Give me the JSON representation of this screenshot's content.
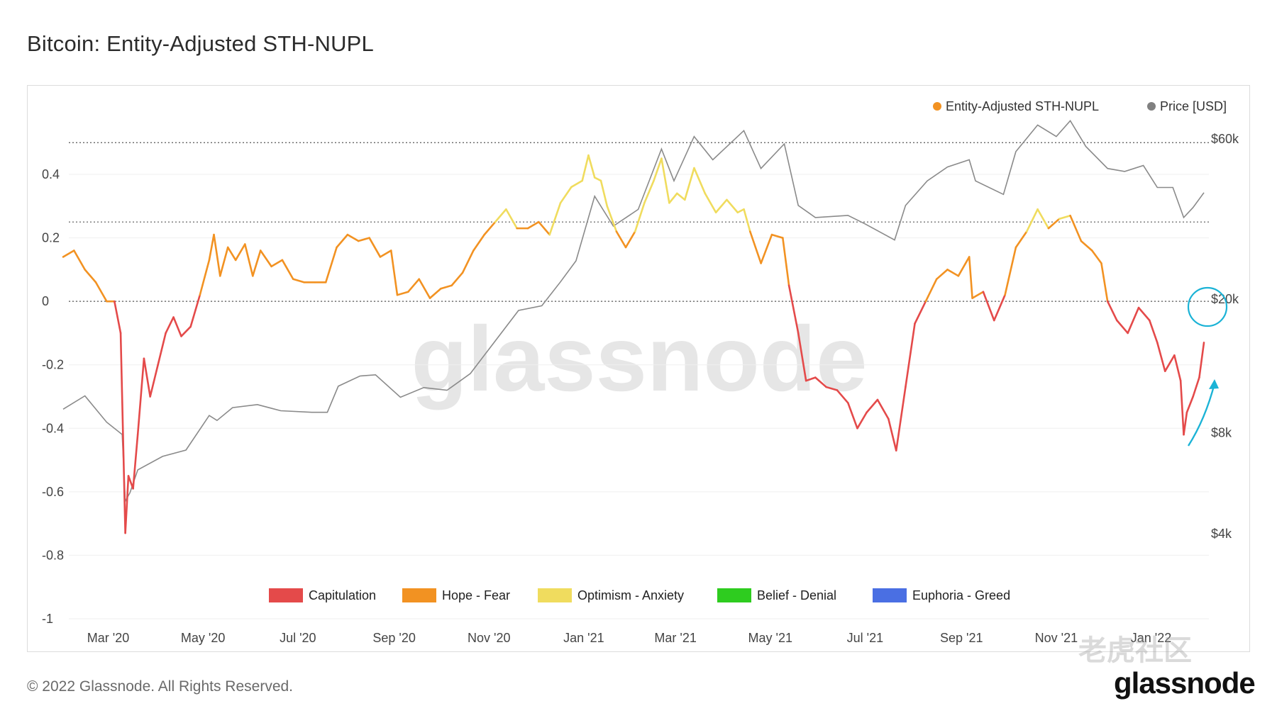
{
  "title": "Bitcoin: Entity-Adjusted STH-NUPL",
  "footer": {
    "copyright": "© 2022 Glassnode. All Rights Reserved.",
    "logo": "glassnode"
  },
  "watermark": "glassnode",
  "corner_watermark": "老虎社区",
  "colors": {
    "capitulation": "#e44a4a",
    "hope_fear": "#f29222",
    "optimism_anxiety": "#f0dc5e",
    "belief_denial": "#2ecc1f",
    "euphoria_greed": "#4a6fe3",
    "price": "#8a8a8a",
    "annotation": "#1bb3d6",
    "legend_nupl_dot": "#f29222",
    "legend_price_dot": "#808080"
  },
  "chart_data": {
    "type": "line",
    "title": "Bitcoin: Entity-Adjusted STH-NUPL",
    "legend_top": [
      {
        "name": "Entity-Adjusted STH-NUPL",
        "color": "#f29222"
      },
      {
        "name": "Price [USD]",
        "color": "#808080"
      }
    ],
    "legend_bottom": [
      {
        "name": "Capitulation",
        "color": "#e44a4a"
      },
      {
        "name": "Hope - Fear",
        "color": "#f29222"
      },
      {
        "name": "Optimism - Anxiety",
        "color": "#f0dc5e"
      },
      {
        "name": "Belief - Denial",
        "color": "#2ecc1f"
      },
      {
        "name": "Euphoria - Greed",
        "color": "#4a6fe3"
      }
    ],
    "x_ticks": [
      "Mar '20",
      "May '20",
      "Jul '20",
      "Sep '20",
      "Nov '20",
      "Jan '21",
      "Mar '21",
      "May '21",
      "Jul '21",
      "Sep '21",
      "Nov '21",
      "Jan '22"
    ],
    "y_left_ticks": [
      "0.4",
      "0.2",
      "0",
      "-0.2",
      "-0.4",
      "-0.6",
      "-0.8",
      "-1"
    ],
    "y_left_values": [
      0.4,
      0.2,
      0,
      -0.2,
      -0.4,
      -0.6,
      -0.8,
      -1
    ],
    "y_left_range": [
      -1,
      0.6
    ],
    "zone_lines": [
      0.5,
      0.25,
      0
    ],
    "y_right_ticks": [
      "$60k",
      "$20k",
      "$8k",
      "$4k"
    ],
    "y_right_values": [
      60000,
      20000,
      8000,
      4000
    ],
    "y_right_scale": "log",
    "y_right_range": [
      4000,
      100000
    ],
    "x_range": [
      "2020-02-01",
      "2022-01-22"
    ],
    "series": [
      {
        "name": "Entity-Adjusted STH-NUPL",
        "colored_by_zone": true,
        "points": [
          [
            "2020-02-01",
            0.14
          ],
          [
            "2020-02-08",
            0.16
          ],
          [
            "2020-02-15",
            0.1
          ],
          [
            "2020-02-22",
            0.06
          ],
          [
            "2020-02-29",
            0.0
          ],
          [
            "2020-03-05",
            0.0
          ],
          [
            "2020-03-09",
            -0.1
          ],
          [
            "2020-03-12",
            -0.73
          ],
          [
            "2020-03-14",
            -0.55
          ],
          [
            "2020-03-17",
            -0.59
          ],
          [
            "2020-03-20",
            -0.42
          ],
          [
            "2020-03-24",
            -0.18
          ],
          [
            "2020-03-28",
            -0.3
          ],
          [
            "2020-04-02",
            -0.2
          ],
          [
            "2020-04-07",
            -0.1
          ],
          [
            "2020-04-12",
            -0.05
          ],
          [
            "2020-04-17",
            -0.11
          ],
          [
            "2020-04-23",
            -0.08
          ],
          [
            "2020-04-29",
            0.02
          ],
          [
            "2020-05-05",
            0.13
          ],
          [
            "2020-05-08",
            0.21
          ],
          [
            "2020-05-12",
            0.08
          ],
          [
            "2020-05-17",
            0.17
          ],
          [
            "2020-05-22",
            0.13
          ],
          [
            "2020-05-28",
            0.18
          ],
          [
            "2020-06-02",
            0.08
          ],
          [
            "2020-06-07",
            0.16
          ],
          [
            "2020-06-14",
            0.11
          ],
          [
            "2020-06-21",
            0.13
          ],
          [
            "2020-06-28",
            0.07
          ],
          [
            "2020-07-05",
            0.06
          ],
          [
            "2020-07-12",
            0.06
          ],
          [
            "2020-07-19",
            0.06
          ],
          [
            "2020-07-26",
            0.17
          ],
          [
            "2020-08-02",
            0.21
          ],
          [
            "2020-08-09",
            0.19
          ],
          [
            "2020-08-16",
            0.2
          ],
          [
            "2020-08-23",
            0.14
          ],
          [
            "2020-08-30",
            0.16
          ],
          [
            "2020-09-03",
            0.02
          ],
          [
            "2020-09-10",
            0.03
          ],
          [
            "2020-09-17",
            0.07
          ],
          [
            "2020-09-24",
            0.01
          ],
          [
            "2020-10-01",
            0.04
          ],
          [
            "2020-10-08",
            0.05
          ],
          [
            "2020-10-15",
            0.09
          ],
          [
            "2020-10-22",
            0.16
          ],
          [
            "2020-10-29",
            0.21
          ],
          [
            "2020-11-05",
            0.25
          ],
          [
            "2020-11-12",
            0.29
          ],
          [
            "2020-11-19",
            0.23
          ],
          [
            "2020-11-26",
            0.23
          ],
          [
            "2020-12-03",
            0.25
          ],
          [
            "2020-12-10",
            0.21
          ],
          [
            "2020-12-17",
            0.31
          ],
          [
            "2020-12-24",
            0.36
          ],
          [
            "2020-12-31",
            0.38
          ],
          [
            "2021-01-04",
            0.46
          ],
          [
            "2021-01-08",
            0.39
          ],
          [
            "2021-01-12",
            0.38
          ],
          [
            "2021-01-16",
            0.3
          ],
          [
            "2021-01-22",
            0.22
          ],
          [
            "2021-01-28",
            0.17
          ],
          [
            "2021-02-03",
            0.22
          ],
          [
            "2021-02-09",
            0.31
          ],
          [
            "2021-02-15",
            0.38
          ],
          [
            "2021-02-20",
            0.45
          ],
          [
            "2021-02-25",
            0.31
          ],
          [
            "2021-03-02",
            0.34
          ],
          [
            "2021-03-07",
            0.32
          ],
          [
            "2021-03-13",
            0.42
          ],
          [
            "2021-03-20",
            0.34
          ],
          [
            "2021-03-27",
            0.28
          ],
          [
            "2021-04-03",
            0.32
          ],
          [
            "2021-04-10",
            0.28
          ],
          [
            "2021-04-14",
            0.29
          ],
          [
            "2021-04-18",
            0.22
          ],
          [
            "2021-04-25",
            0.12
          ],
          [
            "2021-05-02",
            0.21
          ],
          [
            "2021-05-09",
            0.2
          ],
          [
            "2021-05-13",
            0.05
          ],
          [
            "2021-05-19",
            -0.1
          ],
          [
            "2021-05-24",
            -0.25
          ],
          [
            "2021-05-30",
            -0.24
          ],
          [
            "2021-06-06",
            -0.27
          ],
          [
            "2021-06-13",
            -0.28
          ],
          [
            "2021-06-20",
            -0.32
          ],
          [
            "2021-06-26",
            -0.4
          ],
          [
            "2021-07-02",
            -0.35
          ],
          [
            "2021-07-09",
            -0.31
          ],
          [
            "2021-07-16",
            -0.37
          ],
          [
            "2021-07-21",
            -0.47
          ],
          [
            "2021-07-27",
            -0.27
          ],
          [
            "2021-08-02",
            -0.07
          ],
          [
            "2021-08-09",
            0.0
          ],
          [
            "2021-08-16",
            0.07
          ],
          [
            "2021-08-23",
            0.1
          ],
          [
            "2021-08-30",
            0.08
          ],
          [
            "2021-09-06",
            0.14
          ],
          [
            "2021-09-08",
            0.01
          ],
          [
            "2021-09-15",
            0.03
          ],
          [
            "2021-09-22",
            -0.06
          ],
          [
            "2021-09-29",
            0.02
          ],
          [
            "2021-10-06",
            0.17
          ],
          [
            "2021-10-13",
            0.22
          ],
          [
            "2021-10-20",
            0.29
          ],
          [
            "2021-10-27",
            0.23
          ],
          [
            "2021-11-03",
            0.26
          ],
          [
            "2021-11-10",
            0.27
          ],
          [
            "2021-11-17",
            0.19
          ],
          [
            "2021-11-24",
            0.16
          ],
          [
            "2021-11-30",
            0.12
          ],
          [
            "2021-12-04",
            0.0
          ],
          [
            "2021-12-10",
            -0.06
          ],
          [
            "2021-12-17",
            -0.1
          ],
          [
            "2021-12-24",
            -0.02
          ],
          [
            "2021-12-31",
            -0.06
          ],
          [
            "2022-01-05",
            -0.13
          ],
          [
            "2022-01-10",
            -0.22
          ],
          [
            "2022-01-16",
            -0.17
          ],
          [
            "2022-01-20",
            -0.25
          ],
          [
            "2022-01-22",
            -0.42
          ],
          [
            "2022-01-24",
            -0.35
          ],
          [
            "2022-01-28",
            -0.3
          ],
          [
            "2022-02-01",
            -0.24
          ],
          [
            "2022-02-04",
            -0.13
          ]
        ]
      },
      {
        "name": "Price [USD]",
        "color": "#8a8a8a",
        "points": [
          [
            "2020-02-01",
            9400
          ],
          [
            "2020-02-15",
            10300
          ],
          [
            "2020-02-29",
            8600
          ],
          [
            "2020-03-10",
            7900
          ],
          [
            "2020-03-12",
            5000
          ],
          [
            "2020-03-15",
            5300
          ],
          [
            "2020-03-20",
            6200
          ],
          [
            "2020-04-05",
            6800
          ],
          [
            "2020-04-20",
            7100
          ],
          [
            "2020-05-05",
            9000
          ],
          [
            "2020-05-10",
            8700
          ],
          [
            "2020-05-20",
            9500
          ],
          [
            "2020-06-05",
            9700
          ],
          [
            "2020-06-20",
            9300
          ],
          [
            "2020-07-10",
            9200
          ],
          [
            "2020-07-20",
            9200
          ],
          [
            "2020-07-27",
            11000
          ],
          [
            "2020-08-10",
            11800
          ],
          [
            "2020-08-20",
            11900
          ],
          [
            "2020-09-05",
            10200
          ],
          [
            "2020-09-20",
            10900
          ],
          [
            "2020-10-05",
            10700
          ],
          [
            "2020-10-20",
            12000
          ],
          [
            "2020-11-05",
            15000
          ],
          [
            "2020-11-20",
            18500
          ],
          [
            "2020-12-05",
            19100
          ],
          [
            "2020-12-17",
            22500
          ],
          [
            "2020-12-27",
            26000
          ],
          [
            "2021-01-08",
            40500
          ],
          [
            "2021-01-20",
            33000
          ],
          [
            "2021-02-05",
            37000
          ],
          [
            "2021-02-20",
            56000
          ],
          [
            "2021-02-28",
            45000
          ],
          [
            "2021-03-13",
            61000
          ],
          [
            "2021-03-25",
            52000
          ],
          [
            "2021-04-14",
            63500
          ],
          [
            "2021-04-25",
            49000
          ],
          [
            "2021-05-10",
            58000
          ],
          [
            "2021-05-19",
            38000
          ],
          [
            "2021-05-30",
            35000
          ],
          [
            "2021-06-20",
            35500
          ],
          [
            "2021-07-01",
            33500
          ],
          [
            "2021-07-20",
            30000
          ],
          [
            "2021-07-27",
            38000
          ],
          [
            "2021-08-10",
            45000
          ],
          [
            "2021-08-23",
            49500
          ],
          [
            "2021-09-06",
            52000
          ],
          [
            "2021-09-10",
            45000
          ],
          [
            "2021-09-28",
            41000
          ],
          [
            "2021-10-06",
            55000
          ],
          [
            "2021-10-20",
            66000
          ],
          [
            "2021-11-01",
            61000
          ],
          [
            "2021-11-10",
            68000
          ],
          [
            "2021-11-20",
            57000
          ],
          [
            "2021-12-04",
            49000
          ],
          [
            "2021-12-15",
            48000
          ],
          [
            "2021-12-27",
            50000
          ],
          [
            "2022-01-05",
            43000
          ],
          [
            "2022-01-15",
            43000
          ],
          [
            "2022-01-22",
            35000
          ],
          [
            "2022-01-28",
            37500
          ],
          [
            "2022-02-04",
            41500
          ]
        ]
      }
    ]
  }
}
